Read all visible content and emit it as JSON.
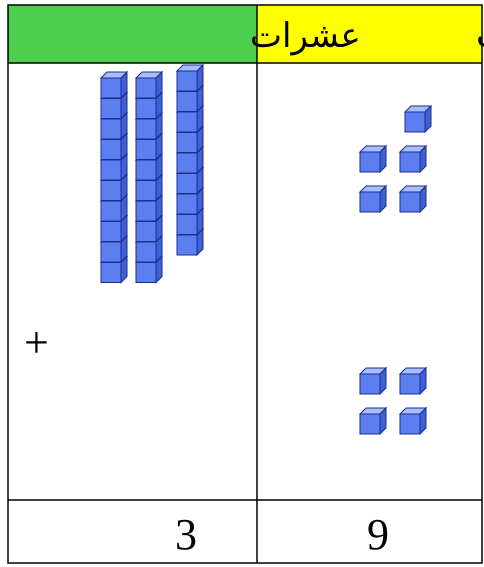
{
  "header": {
    "tens": "عشرات",
    "ones": "وحدات"
  },
  "symbol": "+",
  "totals": {
    "tens": 3,
    "ones": 9
  }
}
